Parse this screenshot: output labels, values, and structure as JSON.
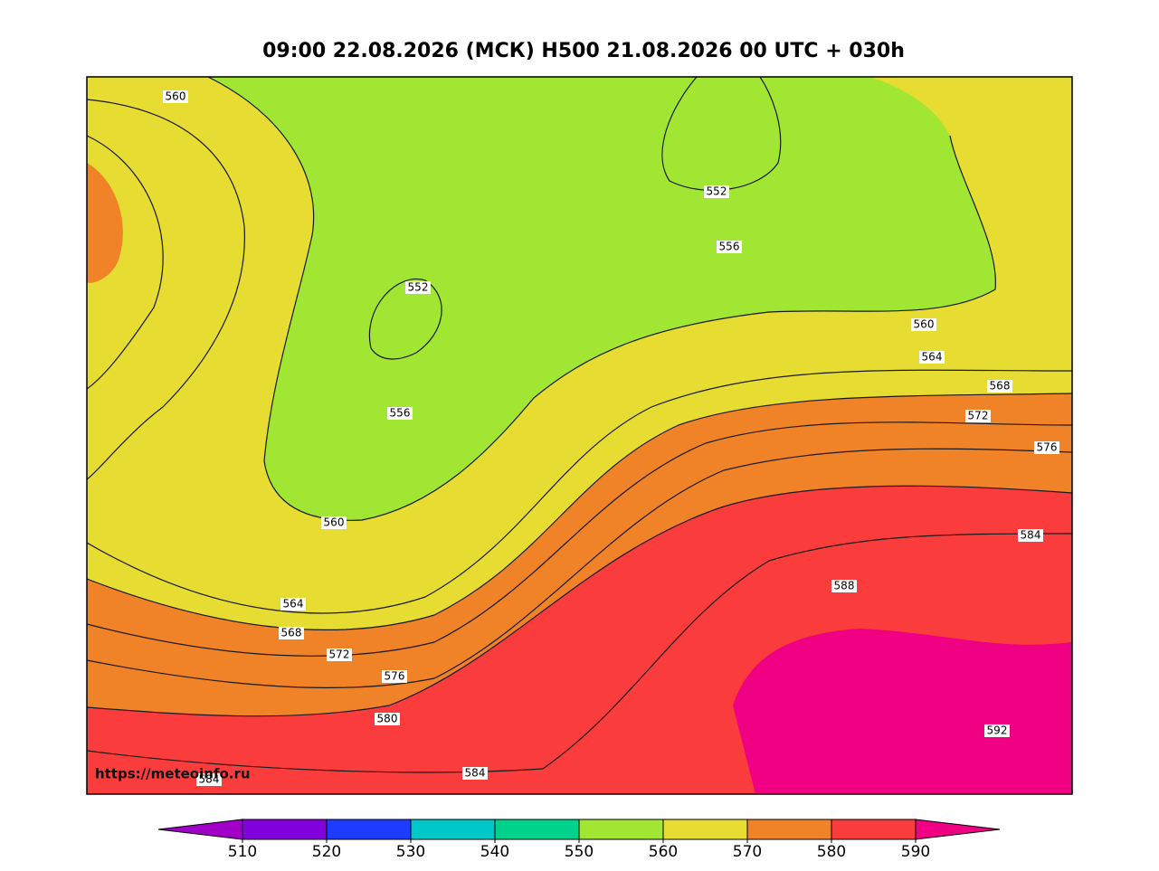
{
  "title": "09:00 22.08.2026 (МСК) H500  21.08.2026 00 UTC + 030h",
  "watermark": "https://meteoinfo.ru",
  "contour_labels": [
    "560",
    "552",
    "556",
    "552",
    "560",
    "564",
    "568",
    "556",
    "572",
    "576",
    "560",
    "584",
    "588",
    "564",
    "568",
    "572",
    "576",
    "580",
    "592",
    "584",
    "584"
  ],
  "colorbar": {
    "ticks": [
      510,
      520,
      530,
      540,
      550,
      560,
      570,
      580,
      590
    ],
    "colors": [
      "#a000c8",
      "#8200dc",
      "#1e3cff",
      "#00c8c8",
      "#00d28c",
      "#a0e632",
      "#e6dc32",
      "#f08228",
      "#fa3c3c",
      "#f00082"
    ]
  }
}
